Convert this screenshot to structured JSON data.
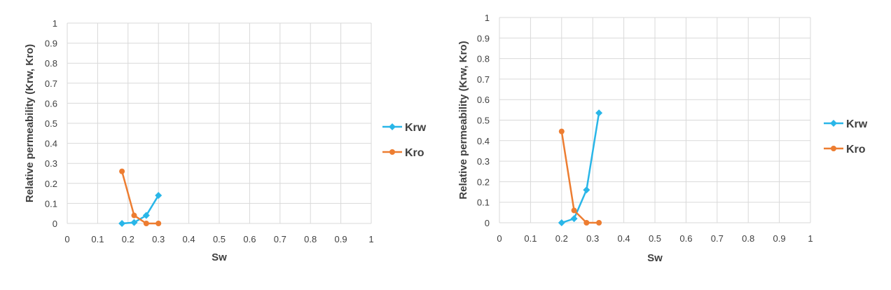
{
  "colors": {
    "krw": "#29B6E8",
    "kro": "#ED7D31",
    "grid": "#D9D9D9",
    "axis_text": "#404040"
  },
  "chart_data": [
    {
      "type": "scatter",
      "xlabel": "Sw",
      "ylabel": "Relative permeability (Krw, Kro)",
      "xlim": [
        0,
        1
      ],
      "ylim": [
        0,
        1
      ],
      "x_ticks": [
        "0",
        "0.1",
        "0.2",
        "0.3",
        "0.4",
        "0.5",
        "0.6",
        "0.7",
        "0.8",
        "0.9",
        "1"
      ],
      "y_ticks": [
        "0",
        "0.1",
        "0.2",
        "0.3",
        "0.4",
        "0.5",
        "0.6",
        "0.7",
        "0.8",
        "0.9",
        "1"
      ],
      "grid": true,
      "legend_position": "right",
      "series": [
        {
          "name": "Krw",
          "marker": "diamond",
          "color": "#29B6E8",
          "x": [
            0.18,
            0.22,
            0.26,
            0.3
          ],
          "y": [
            0.0,
            0.005,
            0.04,
            0.14
          ]
        },
        {
          "name": "Kro",
          "marker": "circle",
          "color": "#ED7D31",
          "x": [
            0.18,
            0.22,
            0.26,
            0.3
          ],
          "y": [
            0.26,
            0.04,
            0.0,
            0.0
          ]
        }
      ]
    },
    {
      "type": "scatter",
      "xlabel": "Sw",
      "ylabel": "Relative permeability (Krw, Kro)",
      "xlim": [
        0,
        1
      ],
      "ylim": [
        0,
        1
      ],
      "x_ticks": [
        "0",
        "0.1",
        "0.2",
        "0.3",
        "0.4",
        "0.5",
        "0.6",
        "0.7",
        "0.8",
        "0.9",
        "1"
      ],
      "y_ticks": [
        "0",
        "0.1",
        "0.2",
        "0.3",
        "0.4",
        "0.5",
        "0.6",
        "0.7",
        "0.8",
        "0.9",
        "1"
      ],
      "grid": true,
      "legend_position": "right",
      "series": [
        {
          "name": "Krw",
          "marker": "diamond",
          "color": "#29B6E8",
          "x": [
            0.2,
            0.24,
            0.28,
            0.32
          ],
          "y": [
            0.0,
            0.02,
            0.16,
            0.535
          ]
        },
        {
          "name": "Kro",
          "marker": "circle",
          "color": "#ED7D31",
          "x": [
            0.2,
            0.24,
            0.28,
            0.32
          ],
          "y": [
            0.445,
            0.06,
            0.0,
            0.0
          ]
        }
      ]
    }
  ]
}
